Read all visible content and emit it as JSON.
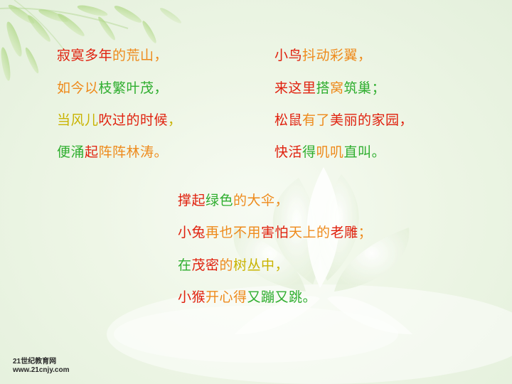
{
  "poem": {
    "left_stanza": [
      [
        {
          "t": "寂寞多年",
          "c": "r"
        },
        {
          "t": "的",
          "c": "o"
        },
        {
          "t": "荒山",
          "c": "o"
        },
        {
          "t": "，",
          "c": "o"
        }
      ],
      [
        {
          "t": "如今以",
          "c": "o"
        },
        {
          "t": "枝繁叶茂",
          "c": "g"
        },
        {
          "t": "，",
          "c": "g"
        }
      ],
      [
        {
          "t": "当风儿",
          "c": "y"
        },
        {
          "t": "吹过的时候",
          "c": "r"
        },
        {
          "t": "，",
          "c": "y"
        }
      ],
      [
        {
          "t": "便涌",
          "c": "g"
        },
        {
          "t": "起",
          "c": "r"
        },
        {
          "t": "阵阵林涛",
          "c": "o"
        },
        {
          "t": "。",
          "c": "o"
        }
      ]
    ],
    "right_stanza": [
      [
        {
          "t": "小鸟",
          "c": "r"
        },
        {
          "t": "抖动彩翼",
          "c": "o"
        },
        {
          "t": "，",
          "c": "o"
        }
      ],
      [
        {
          "t": "来这里",
          "c": "r"
        },
        {
          "t": "搭",
          "c": "g"
        },
        {
          "t": "窝",
          "c": "o"
        },
        {
          "t": "筑巢",
          "c": "g"
        },
        {
          "t": "；",
          "c": "g"
        }
      ],
      [
        {
          "t": "松鼠",
          "c": "r"
        },
        {
          "t": "有了",
          "c": "o"
        },
        {
          "t": "美丽的家园",
          "c": "r"
        },
        {
          "t": "，",
          "c": "r"
        }
      ],
      [
        {
          "t": "快活",
          "c": "r"
        },
        {
          "t": "得",
          "c": "g"
        },
        {
          "t": "叽叽",
          "c": "o"
        },
        {
          "t": "直叫",
          "c": "g"
        },
        {
          "t": "。",
          "c": "g"
        }
      ]
    ],
    "center_stanza": [
      [
        {
          "t": "撑起",
          "c": "r"
        },
        {
          "t": "绿色",
          "c": "g"
        },
        {
          "t": "的",
          "c": "o"
        },
        {
          "t": "大伞",
          "c": "o"
        },
        {
          "t": "，",
          "c": "o"
        }
      ],
      [
        {
          "t": "小兔",
          "c": "r"
        },
        {
          "t": "再也不用",
          "c": "o"
        },
        {
          "t": "害怕",
          "c": "r"
        },
        {
          "t": "天上的",
          "c": "o"
        },
        {
          "t": "老雕",
          "c": "r"
        },
        {
          "t": "；",
          "c": "o"
        }
      ],
      [
        {
          "t": "在",
          "c": "g"
        },
        {
          "t": "茂密",
          "c": "r"
        },
        {
          "t": "的",
          "c": "o"
        },
        {
          "t": "树丛中",
          "c": "y"
        },
        {
          "t": "，",
          "c": "y"
        }
      ],
      [
        {
          "t": "小猴",
          "c": "r"
        },
        {
          "t": "开心得",
          "c": "o"
        },
        {
          "t": "又蹦又跳",
          "c": "g"
        },
        {
          "t": "。",
          "c": "g"
        }
      ]
    ]
  },
  "watermark": {
    "line1": "21世纪教育网",
    "line2": "www.21cnjy.com"
  }
}
